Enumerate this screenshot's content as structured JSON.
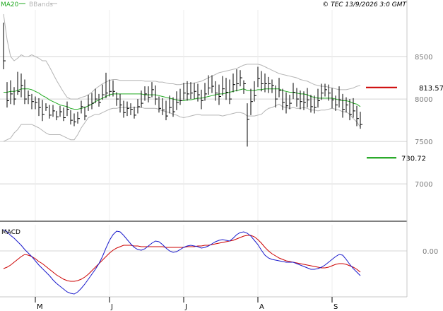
{
  "header": {
    "ma_label": "MA20",
    "bb_label": "BBands",
    "copyright": "© TEC 13/9/2026 3:0 GMT"
  },
  "colors": {
    "price_bars": "#000000",
    "ma20": "#22aa22",
    "bbands": "#b4b4b4",
    "resistance": "#cc0000",
    "support": "#009900",
    "macd_line": "#1a1acc",
    "signal_line": "#cc0000",
    "grid": "#d4d4d4"
  },
  "chart_data": [
    {
      "type": "line",
      "name": "price",
      "chart_style": "ohlc-bars",
      "grid": true,
      "y_ticks": [
        {
          "value": 850,
          "label": "8500"
        },
        {
          "value": 800,
          "label": "8000"
        },
        {
          "value": 750,
          "label": "7500"
        },
        {
          "value": 700,
          "label": "7000"
        }
      ],
      "ylim": [
        656,
        905
      ],
      "levels": [
        {
          "name": "resistance",
          "value": 813.57,
          "label": "813.57"
        },
        {
          "name": "support",
          "value": 730.72,
          "label": "730.72"
        }
      ],
      "close": [
        845,
        798,
        806,
        800,
        809,
        816,
        800,
        804,
        797,
        796,
        790,
        782,
        790,
        781,
        786,
        779,
        785,
        778,
        788,
        775,
        773,
        777,
        791,
        780,
        793,
        795,
        800,
        796,
        805,
        807,
        809,
        809,
        800,
        793,
        784,
        789,
        788,
        781,
        791,
        795,
        806,
        802,
        811,
        800,
        789,
        787,
        780,
        790,
        785,
        796,
        798,
        807,
        806,
        807,
        809,
        805,
        798,
        806,
        813,
        815,
        807,
        803,
        812,
        808,
        800,
        817,
        818,
        825,
        818,
        776,
        797,
        804,
        824,
        818,
        818,
        818,
        816,
        800,
        810,
        796,
        792,
        795,
        808,
        800,
        797,
        796,
        799,
        791,
        790,
        798,
        807,
        811,
        807,
        799,
        793,
        799,
        788,
        793,
        782,
        786,
        777,
        770
      ],
      "high": [
        890,
        820,
        822,
        814,
        832,
        830,
        823,
        810,
        806,
        803,
        801,
        799,
        795,
        793,
        793,
        786,
        792,
        790,
        797,
        787,
        783,
        785,
        798,
        791,
        805,
        807,
        812,
        806,
        817,
        831,
        823,
        822,
        808,
        806,
        798,
        797,
        795,
        791,
        800,
        810,
        815,
        815,
        820,
        816,
        803,
        801,
        798,
        804,
        802,
        809,
        812,
        819,
        821,
        820,
        819,
        818,
        811,
        819,
        828,
        828,
        821,
        817,
        827,
        825,
        823,
        830,
        835,
        834,
        822,
        795,
        812,
        821,
        838,
        833,
        830,
        826,
        823,
        816,
        825,
        812,
        808,
        805,
        819,
        813,
        810,
        809,
        813,
        805,
        804,
        812,
        818,
        818,
        817,
        813,
        804,
        815,
        806,
        802,
        800,
        801,
        792,
        785
      ],
      "low": [
        835,
        790,
        794,
        793,
        805,
        802,
        794,
        794,
        788,
        788,
        780,
        774,
        786,
        777,
        779,
        775,
        779,
        774,
        780,
        770,
        768,
        771,
        783,
        775,
        786,
        788,
        795,
        791,
        799,
        801,
        803,
        803,
        792,
        784,
        778,
        780,
        781,
        777,
        783,
        790,
        798,
        796,
        802,
        793,
        784,
        781,
        775,
        783,
        779,
        787,
        793,
        799,
        798,
        800,
        800,
        797,
        788,
        798,
        805,
        807,
        798,
        793,
        804,
        799,
        794,
        808,
        809,
        815,
        806,
        744,
        781,
        797,
        814,
        809,
        808,
        807,
        807,
        790,
        802,
        787,
        783,
        788,
        800,
        791,
        788,
        787,
        790,
        784,
        783,
        790,
        799,
        803,
        798,
        789,
        786,
        790,
        778,
        784,
        775,
        778,
        768,
        765
      ],
      "ma20": [
        808,
        808,
        809,
        809,
        810,
        812,
        812,
        812,
        811,
        809,
        807,
        804,
        802,
        799,
        797,
        795,
        793,
        792,
        791,
        789,
        788,
        788,
        789,
        790,
        792,
        794,
        797,
        799,
        801,
        803,
        805,
        806,
        806,
        806,
        806,
        806,
        806,
        806,
        806,
        806,
        805,
        805,
        805,
        805,
        804,
        803,
        802,
        801,
        800,
        799,
        798,
        798,
        799,
        799,
        800,
        801,
        801,
        802,
        803,
        804,
        805,
        806,
        806,
        807,
        808,
        809,
        810,
        811,
        812,
        810,
        810,
        810,
        811,
        811,
        812,
        812,
        812,
        812,
        812,
        810,
        809,
        808,
        808,
        807,
        806,
        806,
        805,
        803,
        802,
        801,
        801,
        801,
        801,
        801,
        800,
        799,
        798,
        798,
        797,
        795,
        794,
        791
      ],
      "bb_upper": [
        900,
        870,
        850,
        845,
        848,
        852,
        850,
        850,
        852,
        850,
        848,
        845,
        845,
        838,
        830,
        822,
        815,
        808,
        802,
        800,
        800,
        800,
        802,
        803,
        805,
        808,
        812,
        815,
        818,
        820,
        822,
        823,
        823,
        822,
        822,
        822,
        822,
        822,
        822,
        822,
        821,
        821,
        821,
        821,
        820,
        820,
        819,
        818,
        818,
        817,
        817,
        818,
        818,
        818,
        819,
        820,
        821,
        823,
        825,
        827,
        829,
        831,
        832,
        833,
        834,
        835,
        836,
        838,
        840,
        841,
        841,
        841,
        841,
        840,
        838,
        836,
        834,
        832,
        830,
        829,
        828,
        827,
        826,
        825,
        823,
        822,
        821,
        819,
        817,
        816,
        815,
        815,
        814,
        813,
        812,
        811,
        811,
        811,
        812,
        813,
        815,
        816
      ],
      "bb_lower": [
        750,
        752,
        754,
        760,
        764,
        770,
        770,
        770,
        770,
        768,
        766,
        763,
        760,
        758,
        758,
        758,
        758,
        756,
        754,
        752,
        752,
        758,
        766,
        772,
        778,
        780,
        782,
        782,
        784,
        786,
        788,
        789,
        789,
        790,
        790,
        790,
        790,
        790,
        790,
        790,
        789,
        789,
        789,
        789,
        788,
        786,
        785,
        784,
        782,
        781,
        779,
        778,
        779,
        780,
        781,
        782,
        781,
        781,
        781,
        781,
        781,
        781,
        780,
        781,
        782,
        783,
        784,
        784,
        783,
        780,
        780,
        780,
        781,
        782,
        786,
        789,
        790,
        792,
        794,
        791,
        790,
        789,
        790,
        789,
        789,
        790,
        789,
        787,
        787,
        786,
        787,
        787,
        788,
        789,
        788,
        787,
        785,
        785,
        782,
        777,
        773,
        767
      ]
    },
    {
      "type": "line",
      "name": "MACD",
      "title": "MACD",
      "y_ticks": [
        {
          "value": 0,
          "label": "0.00"
        }
      ],
      "ylim": [
        -6.5,
        3.7
      ],
      "x_tick_labels": [
        "M",
        "J",
        "J",
        "A",
        "S"
      ],
      "x_tick_index": [
        9,
        30,
        51,
        72,
        93
      ],
      "macd": [
        3.0,
        2.7,
        2.2,
        1.8,
        1.3,
        0.8,
        0.2,
        -0.3,
        -0.8,
        -1.4,
        -2.0,
        -2.5,
        -3.0,
        -3.5,
        -4.1,
        -4.6,
        -5.0,
        -5.4,
        -5.8,
        -6.0,
        -6.1,
        -5.8,
        -5.3,
        -4.7,
        -4.0,
        -3.3,
        -2.6,
        -1.8,
        -0.8,
        0.4,
        1.5,
        2.3,
        2.8,
        2.7,
        2.2,
        1.6,
        1.0,
        0.5,
        0.2,
        0.1,
        0.3,
        0.7,
        1.1,
        1.4,
        1.3,
        0.9,
        0.4,
        0.0,
        -0.2,
        -0.1,
        0.2,
        0.5,
        0.7,
        0.8,
        0.7,
        0.6,
        0.4,
        0.5,
        0.7,
        1.0,
        1.3,
        1.5,
        1.6,
        1.5,
        1.4,
        1.8,
        2.3,
        2.6,
        2.7,
        2.5,
        2.1,
        1.5,
        0.9,
        0.1,
        -0.6,
        -1.0,
        -1.2,
        -1.3,
        -1.4,
        -1.5,
        -1.6,
        -1.6,
        -1.6,
        -1.8,
        -2.0,
        -2.2,
        -2.4,
        -2.6,
        -2.6,
        -2.5,
        -2.3,
        -2.0,
        -1.6,
        -1.2,
        -0.8,
        -0.5,
        -0.6,
        -1.2,
        -1.9,
        -2.5,
        -3.0,
        -3.5
      ],
      "signal": [
        -2.5,
        -2.3,
        -2.0,
        -1.6,
        -1.2,
        -0.8,
        -0.5,
        -0.6,
        -0.8,
        -1.1,
        -1.5,
        -1.8,
        -2.2,
        -2.6,
        -3.0,
        -3.4,
        -3.7,
        -4.0,
        -4.2,
        -4.3,
        -4.3,
        -4.2,
        -4.0,
        -3.7,
        -3.3,
        -2.8,
        -2.3,
        -1.8,
        -1.3,
        -0.8,
        -0.3,
        0.1,
        0.4,
        0.6,
        0.8,
        0.8,
        0.8,
        0.7,
        0.7,
        0.6,
        0.6,
        0.6,
        0.6,
        0.6,
        0.6,
        0.6,
        0.5,
        0.5,
        0.5,
        0.5,
        0.5,
        0.5,
        0.6,
        0.6,
        0.6,
        0.7,
        0.7,
        0.8,
        0.8,
        0.9,
        1.0,
        1.1,
        1.2,
        1.3,
        1.4,
        1.5,
        1.7,
        1.9,
        2.1,
        2.2,
        2.2,
        2.0,
        1.6,
        1.1,
        0.5,
        0.0,
        -0.4,
        -0.7,
        -1.0,
        -1.2,
        -1.4,
        -1.5,
        -1.6,
        -1.7,
        -1.8,
        -1.9,
        -2.0,
        -2.1,
        -2.2,
        -2.3,
        -2.4,
        -2.4,
        -2.3,
        -2.1,
        -1.9,
        -1.8,
        -1.8,
        -1.9,
        -2.1,
        -2.3,
        -2.6,
        -3.0
      ]
    }
  ]
}
